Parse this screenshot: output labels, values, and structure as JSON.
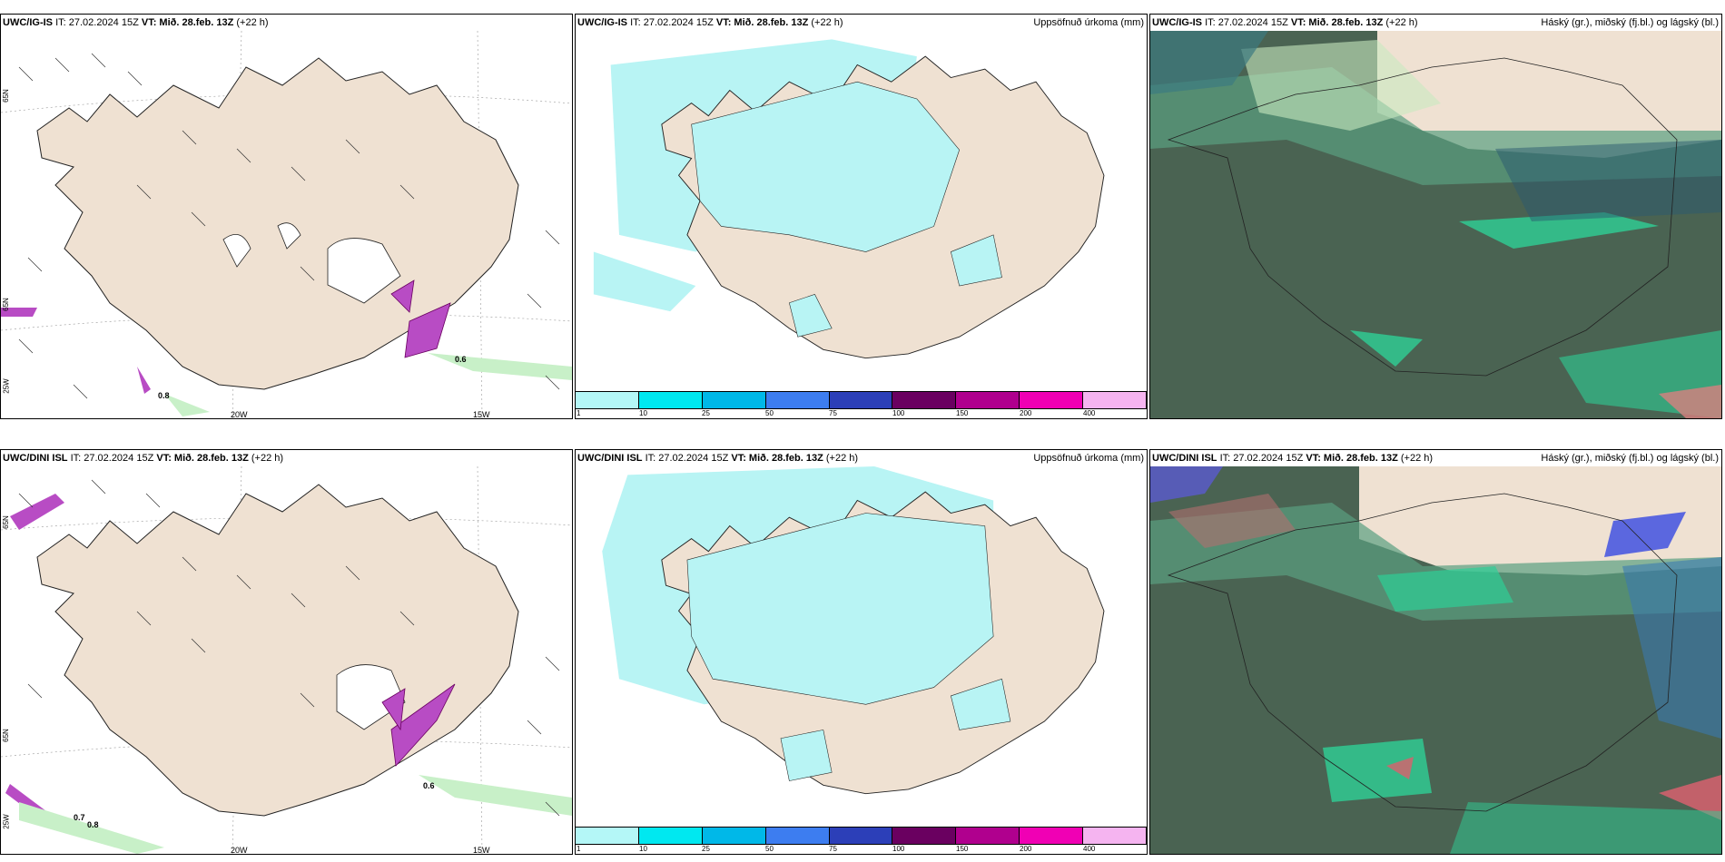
{
  "rows": [
    {
      "model": "UWC/IG-IS",
      "it": "IT: 27.02.2024 15Z",
      "vt": "VT: Mið. 28.feb. 13Z",
      "lead": "(+22 h)",
      "wind_labels": [
        "0.6",
        "0.8"
      ],
      "lon_labels": [
        "20W",
        "15W"
      ],
      "lat_labels": [
        "65N",
        "65N",
        "25W"
      ]
    },
    {
      "model": "UWC/DINI ISL",
      "it": "IT: 27.02.2024 15Z",
      "vt": "VT: Mið. 28.feb. 13Z",
      "lead": "(+22 h)",
      "wind_labels": [
        "0.6",
        "0.7",
        "0.8"
      ],
      "lon_labels": [
        "20W",
        "15W"
      ],
      "lat_labels": [
        "65N",
        "65N",
        "25W"
      ]
    }
  ],
  "precip_title": "Uppsöfnuð úrkoma (mm)",
  "cloud_title": "Háský (gr.), miðský (fj.bl.) og lágský (bl.)",
  "colorbar": {
    "labels": [
      "1",
      "10",
      "25",
      "50",
      "75",
      "100",
      "150",
      "200",
      "400"
    ],
    "colors": [
      "#b4f7f7",
      "#00e8f0",
      "#00b8e8",
      "#3d7df0",
      "#2c3fb8",
      "#6a0060",
      "#b0008e",
      "#f000b4",
      "#f5b4f0"
    ]
  },
  "colors": {
    "land": "#efe1d2",
    "precip_light": "#b8f4f4",
    "cloud_dark": "#4a6352",
    "cloud_green": "#2ecf96",
    "ice_purple": "#b84cc4"
  }
}
